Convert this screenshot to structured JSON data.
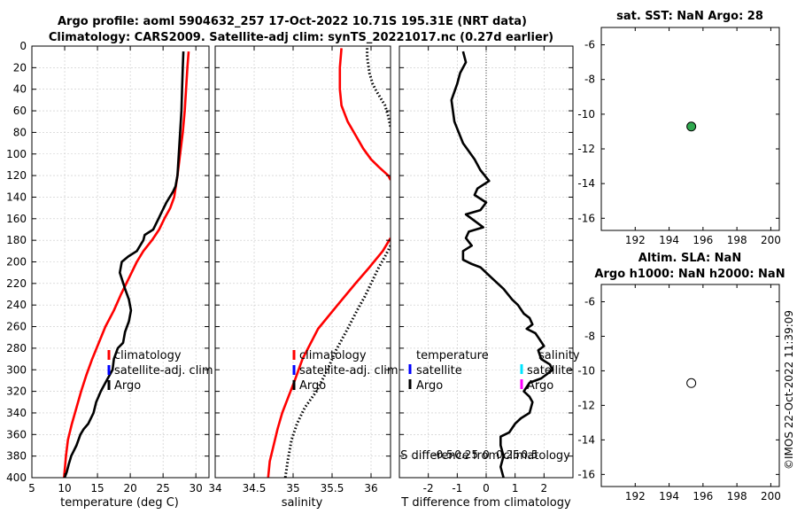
{
  "header": {
    "title_line1": "Argo profile: aoml 5904632_257 17-Oct-2022 10.71S 195.31E (NRT data)",
    "title_line2": "Climatology: CARS2009. Satellite-adj clim: synTS_20221017.nc (0.27d earlier)"
  },
  "watermark": "©IMOS 22-Oct-2022 11:39:09",
  "colors": {
    "climatology": "#ff0000",
    "argo": "#000000",
    "satellite_adj": "#0000ff",
    "s_satellite": "#00e5ff",
    "s_argo": "#ff00ff",
    "dot": "#2fa84f"
  },
  "chart_data": [
    {
      "id": "temperature",
      "type": "line",
      "xlabel": "temperature (deg C)",
      "ylabel": "",
      "xlim": [
        5,
        32
      ],
      "ylim": [
        0,
        400
      ],
      "y_reversed": true,
      "xticks": [
        5,
        10,
        15,
        20,
        25,
        30
      ],
      "yticks": [
        0,
        20,
        40,
        60,
        80,
        100,
        120,
        140,
        160,
        180,
        200,
        220,
        240,
        260,
        280,
        300,
        320,
        340,
        360,
        380,
        400
      ],
      "grid": true,
      "legend": [
        "climatology",
        "satellite-adj. clim",
        "Argo"
      ],
      "series": [
        {
          "name": "climatology",
          "color": "#ff0000",
          "dotted": false,
          "x": [
            28.9,
            28.7,
            28.5,
            28.3,
            28.0,
            27.6,
            27.2,
            26.7,
            26.1,
            25.2,
            24.4,
            23.3,
            22.0,
            21.0,
            19.8,
            18.6,
            17.5,
            16.2,
            15.2,
            14.2,
            13.3,
            12.5,
            11.8,
            11.1,
            10.5,
            10.2,
            9.9
          ],
          "y": [
            5,
            20,
            40,
            60,
            80,
            100,
            120,
            140,
            150,
            160,
            170,
            180,
            190,
            200,
            215,
            230,
            245,
            260,
            275,
            290,
            305,
            320,
            335,
            350,
            365,
            380,
            400
          ]
        },
        {
          "name": "Argo",
          "color": "#000000",
          "dotted": false,
          "x": [
            28.1,
            28.0,
            27.9,
            27.8,
            27.6,
            27.4,
            27.2,
            26.9,
            26.5,
            25.5,
            24.7,
            24.3,
            23.5,
            22.2,
            22.0,
            21.0,
            19.7,
            18.7,
            18.4,
            19.2,
            19.8,
            20.1,
            19.8,
            19.2,
            18.9,
            18.1,
            17.5,
            17.3,
            16.4,
            15.5,
            14.8,
            14.4,
            13.6,
            12.9,
            12.4,
            11.8,
            11.4,
            11.0,
            10.6,
            10.3,
            10.0
          ],
          "y": [
            5,
            20,
            40,
            60,
            80,
            100,
            120,
            130,
            135,
            145,
            155,
            160,
            170,
            175,
            180,
            190,
            195,
            200,
            210,
            225,
            235,
            245,
            255,
            265,
            275,
            280,
            290,
            300,
            310,
            320,
            330,
            340,
            350,
            355,
            360,
            370,
            375,
            380,
            388,
            395,
            400
          ]
        }
      ]
    },
    {
      "id": "salinity",
      "type": "line",
      "xlabel": "salinity",
      "ylabel": "",
      "xlim": [
        34,
        36.25
      ],
      "ylim": [
        0,
        400
      ],
      "y_reversed": true,
      "xticks": [
        34,
        34.5,
        35,
        35.5,
        36
      ],
      "xtick_labels": [
        "34",
        "34.5",
        "35",
        "35.5",
        "36"
      ],
      "grid": true,
      "legend": [
        "climatology",
        "satellite-adj. clim",
        "Argo"
      ],
      "series": [
        {
          "name": "climatology",
          "color": "#ff0000",
          "dotted": false,
          "x": [
            35.62,
            35.6,
            35.6,
            35.62,
            35.7,
            35.82,
            35.9,
            36.0,
            36.1,
            36.22,
            36.25
          ],
          "y": [
            2,
            20,
            40,
            55,
            70,
            85,
            95,
            105,
            112,
            120,
            124
          ]
        },
        {
          "name": "climatology-deep",
          "color": "#ff0000",
          "dotted": false,
          "x": [
            36.25,
            36.15,
            35.98,
            35.8,
            35.57,
            35.32,
            35.12,
            35.02,
            34.94,
            34.86,
            34.8,
            34.75,
            34.7,
            34.68
          ],
          "y": [
            178,
            190,
            205,
            220,
            240,
            262,
            290,
            310,
            325,
            340,
            355,
            370,
            385,
            400
          ]
        },
        {
          "name": "Argo-shallow",
          "color": "#000000",
          "dotted": true,
          "x": [
            35.95,
            35.95,
            35.98,
            36.02,
            36.07,
            36.12,
            36.18,
            36.22,
            36.25
          ],
          "y": [
            2,
            10,
            25,
            35,
            42,
            48,
            55,
            65,
            75
          ]
        },
        {
          "name": "Argo-deep",
          "color": "#000000",
          "dotted": true,
          "x": [
            36.25,
            36.18,
            36.1,
            36.0,
            35.92,
            35.82,
            35.7,
            35.55,
            35.44,
            35.3,
            35.15,
            35.05,
            34.98,
            34.93,
            34.9
          ],
          "y": [
            185,
            195,
            205,
            220,
            232,
            245,
            262,
            282,
            300,
            320,
            335,
            350,
            365,
            385,
            400
          ]
        }
      ]
    },
    {
      "id": "difference",
      "type": "line",
      "xlabel": "T difference from climatology",
      "top_axis_label": "S difference from climatology",
      "xlim": [
        -3,
        3
      ],
      "ylim": [
        0,
        400
      ],
      "y_reversed": true,
      "xticks": [
        -2,
        -1,
        0,
        1,
        2
      ],
      "secondary_xticks": [
        -0.5,
        -0.25,
        0,
        0.25,
        0.5
      ],
      "secondary_xtick_labels": [
        "-0.5",
        "-0.25",
        "0",
        "0.25",
        "0.5"
      ],
      "grid": true,
      "legend_temperature": [
        "temperature",
        "satellite",
        "Argo"
      ],
      "legend_salinity": [
        "salinity",
        "satellite",
        "Argo"
      ],
      "series": [
        {
          "name": "T difference (Argo - climatology)",
          "color": "#000000",
          "dotted": false,
          "x": [
            -0.8,
            -0.7,
            -0.9,
            -1.0,
            -1.2,
            -1.1,
            -0.8,
            -0.4,
            -0.2,
            0.1,
            -0.3,
            -0.4,
            0.0,
            -0.2,
            -0.7,
            -0.4,
            -0.1,
            -0.6,
            -0.7,
            -0.5,
            -0.8,
            -0.8,
            -0.5,
            -0.2,
            0.0,
            0.2,
            0.6,
            0.9,
            1.1,
            1.3,
            1.5,
            1.6,
            1.4,
            1.7,
            1.8,
            2.0,
            1.8,
            1.9,
            2.2,
            2.3,
            1.9,
            1.5,
            1.3,
            1.5,
            1.6,
            1.5,
            1.2,
            1.0,
            0.8,
            0.5,
            0.5,
            0.6,
            0.5,
            0.6
          ],
          "y": [
            5,
            15,
            25,
            35,
            50,
            70,
            90,
            105,
            115,
            125,
            132,
            138,
            145,
            152,
            156,
            162,
            168,
            172,
            178,
            185,
            190,
            198,
            202,
            205,
            210,
            215,
            225,
            235,
            240,
            248,
            252,
            258,
            262,
            266,
            270,
            278,
            282,
            290,
            295,
            300,
            308,
            312,
            320,
            325,
            330,
            340,
            345,
            350,
            358,
            362,
            370,
            380,
            390,
            400
          ]
        }
      ]
    },
    {
      "id": "sst-map",
      "type": "scatter",
      "title": "sat. SST: NaN Argo: 28",
      "xlim": [
        190,
        200.5
      ],
      "ylim": [
        -16.7,
        -5
      ],
      "xticks": [
        192,
        194,
        196,
        198,
        200
      ],
      "yticks": [
        -6,
        -8,
        -10,
        -12,
        -14,
        -16
      ],
      "points": [
        {
          "x": 195.31,
          "y": -10.71,
          "fill": "#2fa84f"
        }
      ]
    },
    {
      "id": "sla-map",
      "type": "scatter",
      "title_line1": "Altim. SLA: NaN",
      "title_line2": "Argo h1000: NaN h2000: NaN",
      "xlim": [
        190,
        200.5
      ],
      "ylim": [
        -16.7,
        -5
      ],
      "xticks": [
        192,
        194,
        196,
        198,
        200
      ],
      "yticks": [
        -6,
        -8,
        -10,
        -12,
        -14,
        -16
      ],
      "points": [
        {
          "x": 195.31,
          "y": -10.71,
          "fill": "#ffffff"
        }
      ]
    }
  ]
}
